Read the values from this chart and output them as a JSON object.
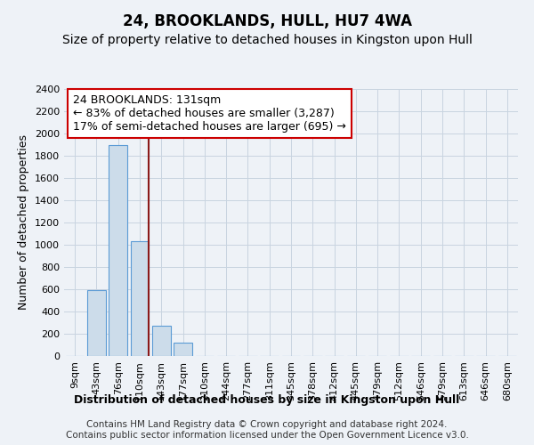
{
  "title": "24, BROOKLANDS, HULL, HU7 4WA",
  "subtitle": "Size of property relative to detached houses in Kingston upon Hull",
  "xlabel": "Distribution of detached houses by size in Kingston upon Hull",
  "ylabel": "Number of detached properties",
  "footer": "Contains HM Land Registry data © Crown copyright and database right 2024.\nContains public sector information licensed under the Open Government Licence v3.0.",
  "categories": [
    "9sqm",
    "43sqm",
    "76sqm",
    "110sqm",
    "143sqm",
    "177sqm",
    "210sqm",
    "244sqm",
    "277sqm",
    "311sqm",
    "345sqm",
    "378sqm",
    "412sqm",
    "445sqm",
    "479sqm",
    "512sqm",
    "546sqm",
    "579sqm",
    "613sqm",
    "646sqm",
    "680sqm"
  ],
  "values": [
    0,
    590,
    1900,
    1030,
    270,
    120,
    0,
    0,
    0,
    0,
    0,
    0,
    0,
    0,
    0,
    0,
    0,
    0,
    0,
    0,
    0
  ],
  "bar_color": "#ccdcea",
  "bar_edge_color": "#5b9bd5",
  "vline_x_index": 3.42,
  "vline_color": "#8b1a1a",
  "annotation_text": "24 BROOKLANDS: 131sqm\n← 83% of detached houses are smaller (3,287)\n17% of semi-detached houses are larger (695) →",
  "annotation_box_color": "white",
  "annotation_box_edge": "#cc0000",
  "ylim": [
    0,
    2400
  ],
  "yticks": [
    0,
    200,
    400,
    600,
    800,
    1000,
    1200,
    1400,
    1600,
    1800,
    2000,
    2200,
    2400
  ],
  "background_color": "#eef2f7",
  "grid_color": "#c8d4e0",
  "title_fontsize": 12,
  "subtitle_fontsize": 10,
  "axis_label_fontsize": 9,
  "tick_fontsize": 8,
  "footer_fontsize": 7.5,
  "annotation_fontsize": 9
}
